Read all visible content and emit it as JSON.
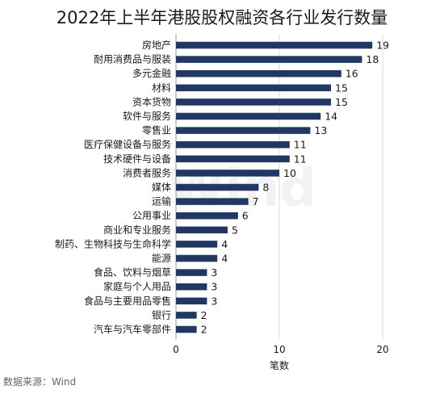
{
  "chart_data": {
    "type": "bar",
    "orientation": "horizontal",
    "title": "2022年上半年港股股权融资各行业发行数量",
    "xlabel": "笔数",
    "ylabel": "",
    "source": "数据来源：Wind",
    "watermark": "Wind",
    "xlim": [
      0,
      25
    ],
    "xticks": [
      0,
      10,
      20
    ],
    "grid": "vertical",
    "bar_color": "#1f3864",
    "categories": [
      "房地产",
      "耐用消费品与服装",
      "多元金融",
      "材料",
      "资本货物",
      "软件与服务",
      "零售业",
      "医疗保健设备与服务",
      "技术硬件与设备",
      "消费者服务",
      "媒体",
      "运输",
      "公用事业",
      "商业和专业服务",
      "制药、生物科技与生命科学",
      "能源",
      "食品、饮料与烟草",
      "家庭与个人用品",
      "食品与主要用品零售",
      "银行",
      "汽车与汽车零部件"
    ],
    "values": [
      19,
      18,
      16,
      15,
      15,
      14,
      13,
      11,
      11,
      10,
      8,
      7,
      6,
      5,
      4,
      4,
      3,
      3,
      3,
      2,
      2
    ]
  }
}
